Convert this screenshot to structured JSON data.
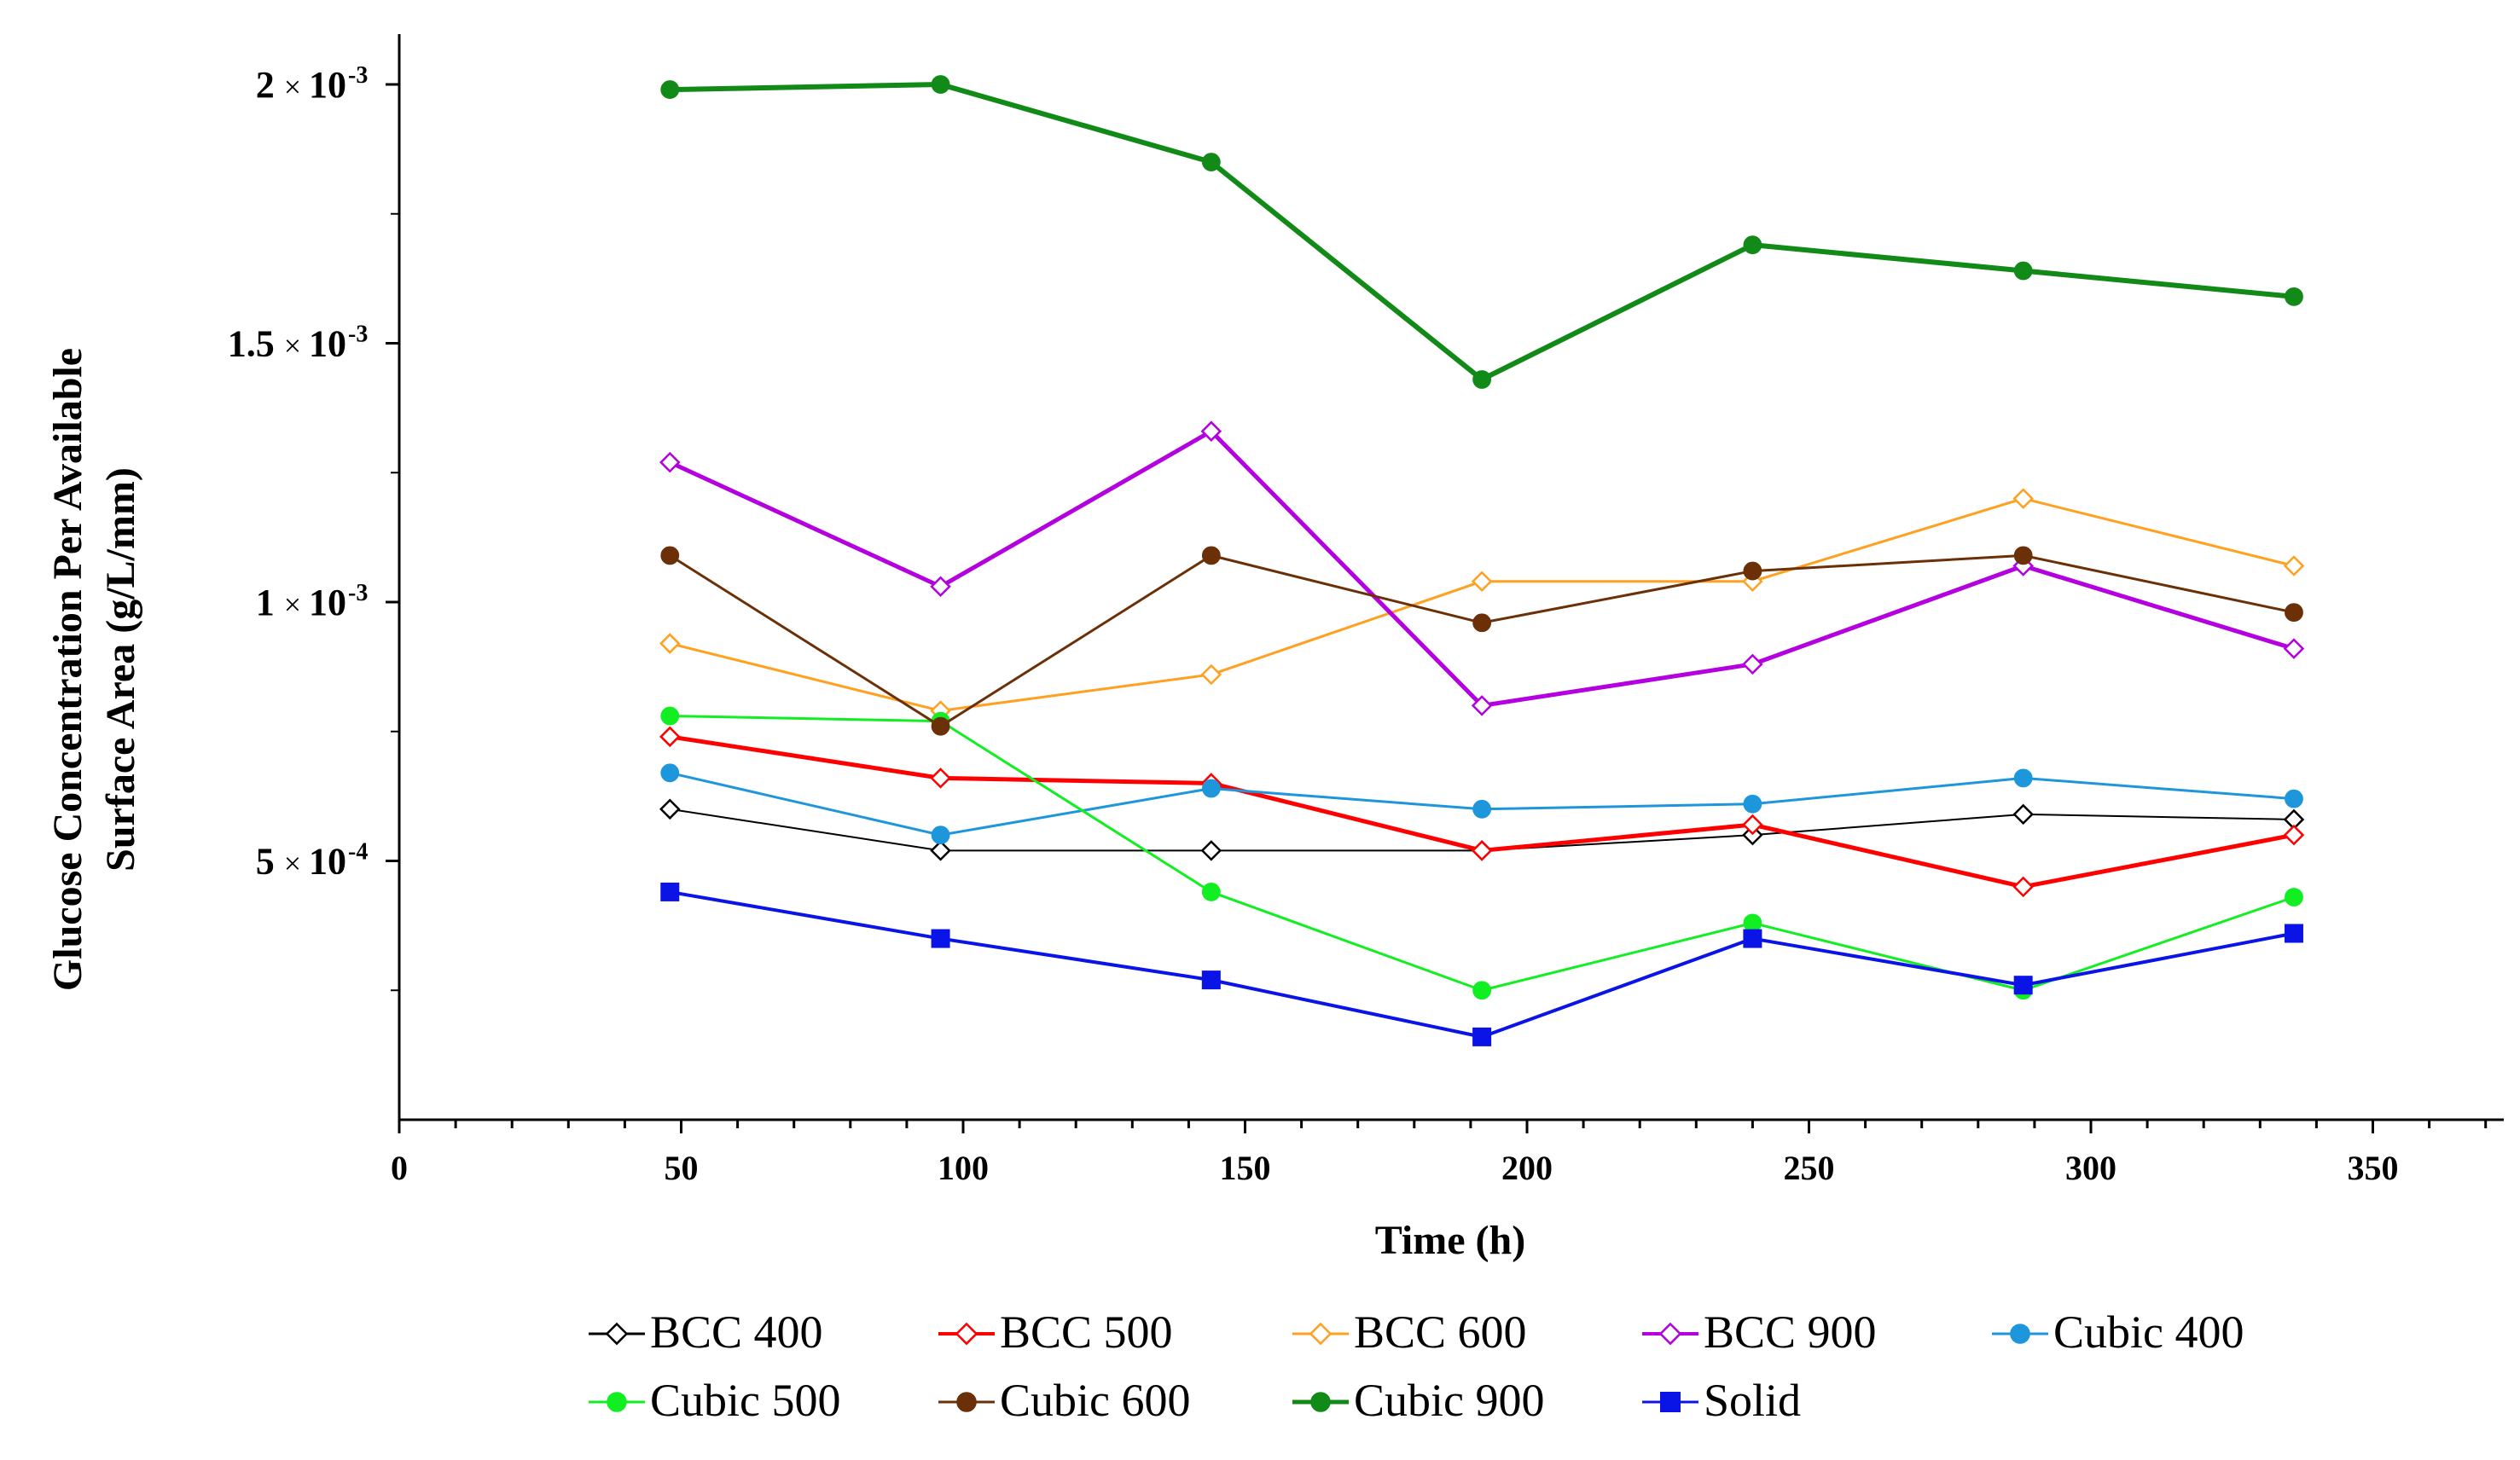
{
  "chart_data": {
    "type": "line",
    "title": "",
    "xlabel": "Time (h)",
    "ylabel_line1": "Glucose Concentration Per Available",
    "ylabel_line2": "Surface Area (g/L/mm)",
    "xlim": [
      0,
      375
    ],
    "ylim": [
      0.0,
      0.0021
    ],
    "xticks": [
      0,
      50,
      100,
      150,
      200,
      250,
      300,
      350
    ],
    "yticks": [
      {
        "value": 0.0005,
        "mantissa": "5",
        "exponent": "-4"
      },
      {
        "value": 0.001,
        "mantissa": "1",
        "exponent": "-3"
      },
      {
        "value": 0.0015,
        "mantissa": "1.5",
        "exponent": "-3"
      },
      {
        "value": 0.002,
        "mantissa": "2",
        "exponent": "-3"
      }
    ],
    "times_sign": "×",
    "base": "10",
    "x": [
      48,
      96,
      144,
      192,
      240,
      288,
      336
    ],
    "series": [
      {
        "name": "BCC 400",
        "color": "#000000",
        "marker": "diamond-open",
        "width": 2,
        "values": [
          0.0006,
          0.00052,
          0.00052,
          0.00052,
          0.00055,
          0.00059,
          0.00058
        ]
      },
      {
        "name": "BCC 500",
        "color": "#ff0000",
        "marker": "diamond-open",
        "width": 5,
        "values": [
          0.00074,
          0.00066,
          0.00065,
          0.00052,
          0.00057,
          0.00045,
          0.00055
        ]
      },
      {
        "name": "BCC 600",
        "color": "#ffa020",
        "marker": "diamond-open",
        "width": 3,
        "values": [
          0.00092,
          0.00079,
          0.00086,
          0.00104,
          0.00104,
          0.0012,
          0.00107
        ]
      },
      {
        "name": "BCC 900",
        "color": "#b400e0",
        "marker": "diamond-open",
        "width": 5,
        "values": [
          0.00127,
          0.00103,
          0.00133,
          0.0008,
          0.00088,
          0.00107,
          0.00091
        ]
      },
      {
        "name": "Cubic 400",
        "color": "#1e96dc",
        "marker": "circle",
        "width": 3,
        "values": [
          0.00067,
          0.00055,
          0.00064,
          0.0006,
          0.00061,
          0.00066,
          0.00062
        ]
      },
      {
        "name": "Cubic 500",
        "color": "#11ee22",
        "marker": "circle",
        "width": 3,
        "values": [
          0.00078,
          0.00077,
          0.00044,
          0.00025,
          0.00038,
          0.00025,
          0.00043
        ]
      },
      {
        "name": "Cubic 600",
        "color": "#6b3008",
        "marker": "circle",
        "width": 3,
        "values": [
          0.00109,
          0.00076,
          0.00109,
          0.00096,
          0.00106,
          0.00109,
          0.00098
        ]
      },
      {
        "name": "Cubic 900",
        "color": "#118a18",
        "marker": "circle",
        "width": 6,
        "values": [
          0.00199,
          0.002,
          0.00185,
          0.00143,
          0.00169,
          0.00164,
          0.00159
        ]
      },
      {
        "name": "Solid",
        "color": "#0a14e6",
        "marker": "square",
        "width": 4,
        "values": [
          0.00044,
          0.00035,
          0.00027,
          0.00016,
          0.00035,
          0.00026,
          0.00036
        ]
      }
    ],
    "legend_position": "bottom"
  }
}
